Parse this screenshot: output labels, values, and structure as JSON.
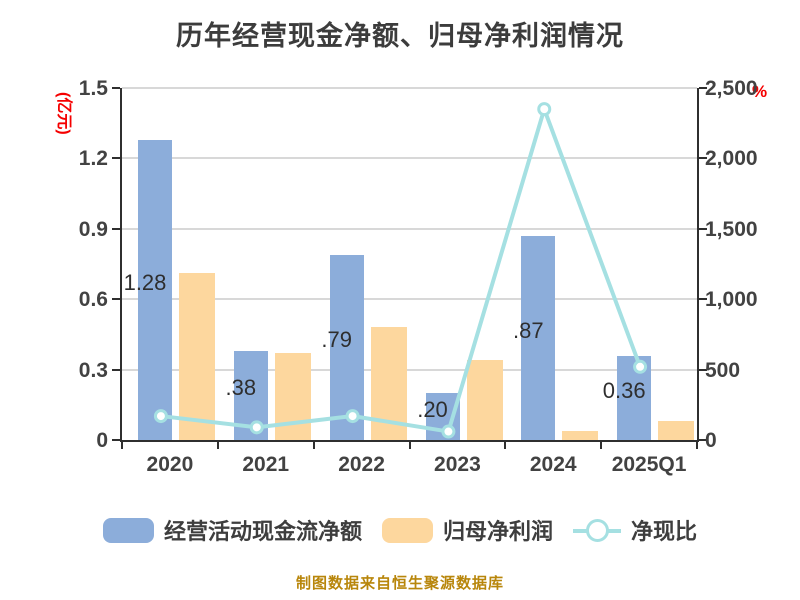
{
  "title": "历年经营现金净额、归母净利润情况",
  "footer": "制图数据来自恒生聚源数据库",
  "left_axis": {
    "unit": "(亿元)",
    "tick_labels": [
      "0",
      "0.3",
      "0.6",
      "0.9",
      "1.2",
      "1.5"
    ],
    "tick_values": [
      0,
      0.3,
      0.6,
      0.9,
      1.2,
      1.5
    ],
    "min": 0,
    "max": 1.5
  },
  "right_axis": {
    "unit": "%",
    "tick_labels": [
      "0",
      "500",
      "1,000",
      "1,500",
      "2,000",
      "2,500"
    ],
    "tick_values": [
      0,
      500,
      1000,
      1500,
      2000,
      2500
    ],
    "min": 0,
    "max": 2500
  },
  "colors": {
    "bar_cashflow": "#8cadda",
    "bar_netprofit": "#fdd79e",
    "ratio_line": "#a5e0e2",
    "marker_fill": "#ffffff",
    "grid": "#d8d8d8",
    "axis": "#2f2f2f",
    "unit_red": "#f50000",
    "text": "#3e3e3e",
    "footer": "#b8860b"
  },
  "chart_data": {
    "type": "bar",
    "subtype": "grouped bars with secondary-axis line",
    "categories": [
      "2020",
      "2021",
      "2022",
      "2023",
      "2024",
      "2025Q1"
    ],
    "series": [
      {
        "name": "经营活动现金流净额",
        "type": "bar",
        "axis": "left",
        "values": [
          1.28,
          0.38,
          0.79,
          0.2,
          0.87,
          0.36
        ],
        "display_labels": [
          "1.28",
          ".38",
          ".79",
          ".20",
          ".87",
          "0.36"
        ],
        "color": "#8cadda"
      },
      {
        "name": "归母净利润",
        "type": "bar",
        "axis": "left",
        "values": [
          0.71,
          0.37,
          0.48,
          0.34,
          0.04,
          0.08
        ],
        "display_labels": [],
        "color": "#fdd79e"
      },
      {
        "name": "净现比",
        "type": "line",
        "axis": "right",
        "values": [
          170,
          90,
          170,
          60,
          2350,
          520
        ],
        "display_labels": [],
        "color": "#a5e0e2"
      }
    ],
    "left_ylim": [
      0,
      1.5
    ],
    "right_ylim": [
      0,
      2500
    ],
    "grid": "horizontal",
    "legend_position": "bottom"
  },
  "legend": {
    "items": [
      {
        "label": "经营活动现金流净额",
        "swatch": "bar",
        "color": "#8cadda"
      },
      {
        "label": "归母净利润",
        "swatch": "bar",
        "color": "#fdd79e"
      },
      {
        "label": "净现比",
        "swatch": "line",
        "color": "#a5e0e2"
      }
    ]
  }
}
